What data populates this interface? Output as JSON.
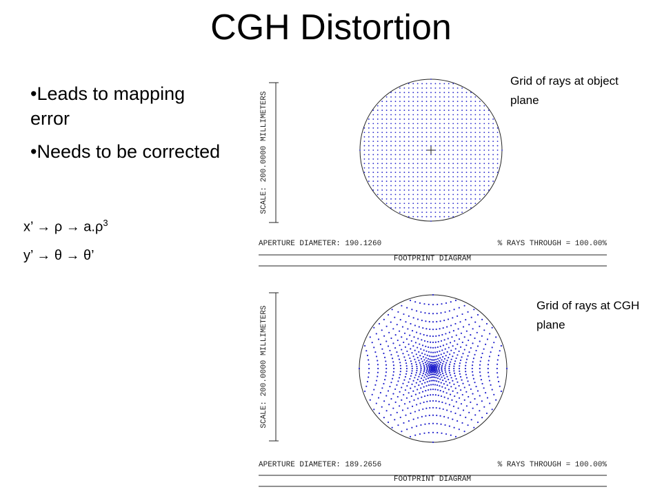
{
  "title": "CGH Distortion",
  "bullets": [
    "Leads to mapping error",
    "Needs to be corrected"
  ],
  "equations": [
    {
      "text": "x’ → ρ → a.ρ",
      "sup": "3"
    },
    {
      "text": "y’ → θ → θ’"
    }
  ],
  "diagrams": [
    {
      "caption": "Grid of rays at object plane",
      "scale": "SCALE: 200.0000 MILLIMETERS",
      "aperture": "APERTURE DIAMETER: 190.1260",
      "rays": "% RAYS THROUGH = 100.00%",
      "footer": "FOOTPRINT DIAGRAM"
    },
    {
      "caption": "Grid of rays at CGH plane",
      "scale": "SCALE: 200.0000 MILLIMETERS",
      "aperture": "APERTURE DIAMETER: 189.2656",
      "rays": "% RAYS THROUGH = 100.00%",
      "footer": "FOOTPRINT DIAGRAM"
    }
  ]
}
